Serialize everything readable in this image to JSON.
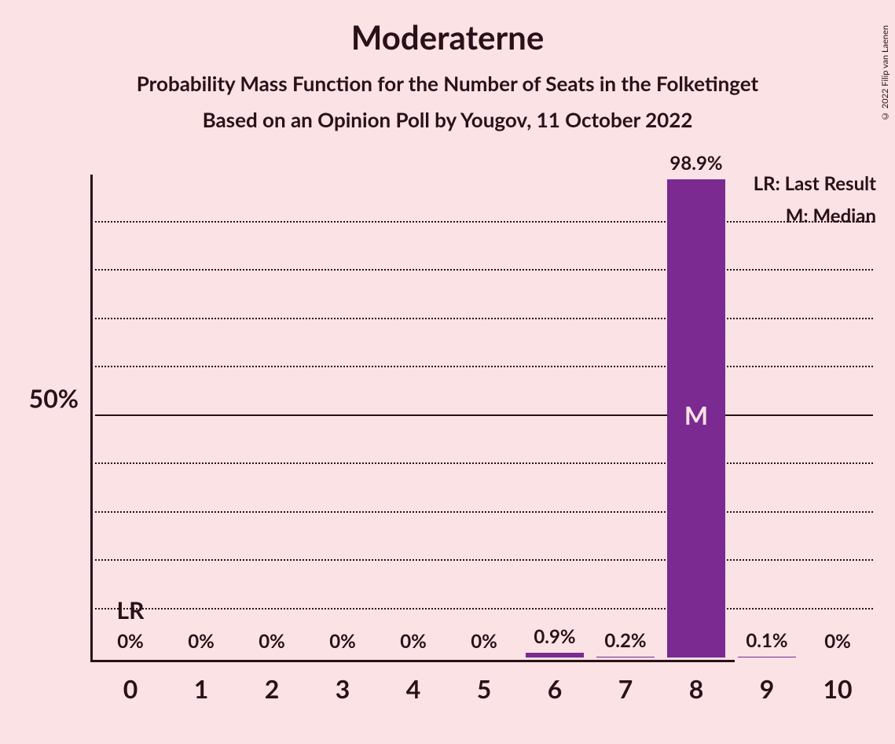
{
  "title": "Moderaterne",
  "subtitle1": "Probability Mass Function for the Number of Seats in the Folketinget",
  "subtitle2": "Based on an Opinion Poll by Yougov, 11 October 2022",
  "copyright": "© 2022 Filip van Laenen",
  "chart": {
    "type": "bar",
    "background_color": "#fbe2e4",
    "bar_color": "#7a2a90",
    "text_color": "#2b1019",
    "bar_inner_text_color": "#fbe2e4",
    "ylim_percent": 100,
    "y_major_tick": {
      "value": 50,
      "label": "50%"
    },
    "gridlines_percent": [
      10,
      20,
      30,
      40,
      50,
      60,
      70,
      80,
      90
    ],
    "categories": [
      "0",
      "1",
      "2",
      "3",
      "4",
      "5",
      "6",
      "7",
      "8",
      "9",
      "10"
    ],
    "values_percent": [
      0,
      0,
      0,
      0,
      0,
      0,
      0.9,
      0.2,
      98.9,
      0.1,
      0
    ],
    "value_labels": [
      "0%",
      "0%",
      "0%",
      "0%",
      "0%",
      "0%",
      "0.9%",
      "0.2%",
      "98.9%",
      "0.1%",
      "0%"
    ],
    "median_index": 8,
    "median_marker": "M",
    "last_result_index": 0,
    "last_result_marker": "LR",
    "bar_width_ratio": 0.82,
    "title_fontsize": 42,
    "subtitle_fontsize": 26,
    "axis_label_fontsize": 32,
    "value_label_fontsize": 24
  },
  "legend": {
    "lr": "LR: Last Result",
    "m": "M: Median"
  }
}
